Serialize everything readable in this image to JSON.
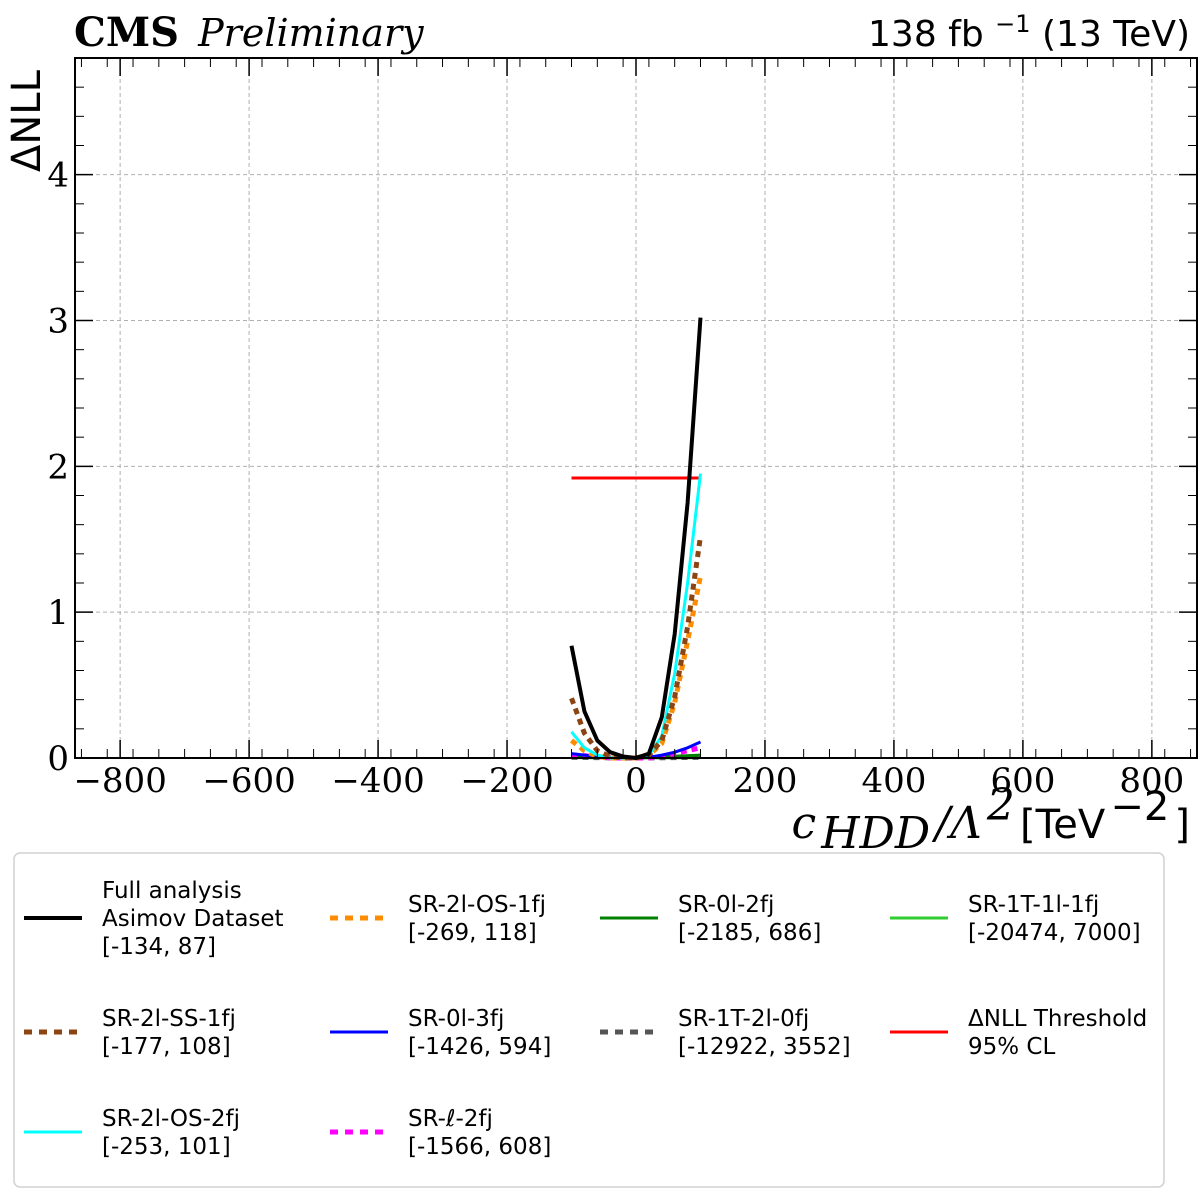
{
  "header": {
    "experiment": "CMS",
    "status": "Preliminary",
    "lumi_value": "138 fb",
    "lumi_exp": "−1",
    "energy": " (13 TeV)"
  },
  "axes": {
    "ylabel": "ΔNLL",
    "xlabel_symbol": "c",
    "xlabel_sub": "HDD",
    "xlabel_mid": "/Λ",
    "xlabel_pow": "2",
    "xlabel_unit": " [TeV",
    "xlabel_unit_pow": "−2",
    "xlabel_close": "]"
  },
  "chart_data": {
    "type": "line",
    "xlim": [
      -870,
      870
    ],
    "ylim": [
      0,
      4.8
    ],
    "grid": true,
    "legend_position": "below",
    "x_ticks": [
      {
        "value": -800,
        "label": "−800"
      },
      {
        "value": -600,
        "label": "−600"
      },
      {
        "value": -400,
        "label": "−400"
      },
      {
        "value": -200,
        "label": "−200"
      },
      {
        "value": 0,
        "label": "0"
      },
      {
        "value": 200,
        "label": "200"
      },
      {
        "value": 400,
        "label": "400"
      },
      {
        "value": 600,
        "label": "600"
      },
      {
        "value": 800,
        "label": "800"
      }
    ],
    "y_ticks": [
      {
        "value": 0,
        "label": "0"
      },
      {
        "value": 1,
        "label": "1"
      },
      {
        "value": 2,
        "label": "2"
      },
      {
        "value": 3,
        "label": "3"
      },
      {
        "value": 4,
        "label": "4"
      }
    ],
    "series": [
      {
        "name": "Full analysis",
        "name2": "Asimov Dataset",
        "interval": "[-134, 87]",
        "color": "#000000",
        "style": "solid",
        "width": 4,
        "x": [
          -100,
          -80,
          -60,
          -40,
          -20,
          0,
          20,
          40,
          60,
          80,
          100
        ],
        "y": [
          0.77,
          0.32,
          0.12,
          0.04,
          0.01,
          0.0,
          0.03,
          0.28,
          0.85,
          1.75,
          3.02
        ]
      },
      {
        "name": "SR-2l-SS-1fj",
        "interval": "[-177, 108]",
        "color": "#8B4513",
        "style": "dotted",
        "width": 5,
        "x": [
          -100,
          -80,
          -60,
          -40,
          -20,
          0,
          20,
          40,
          60,
          80,
          100
        ],
        "y": [
          0.41,
          0.17,
          0.05,
          0.01,
          0.0,
          0.0,
          0.02,
          0.12,
          0.42,
          0.9,
          1.52
        ]
      },
      {
        "name": "SR-2l-OS-2fj",
        "interval": "[-253, 101]",
        "color": "#00FFFF",
        "style": "solid",
        "width": 3,
        "x": [
          -100,
          -80,
          -60,
          -40,
          -20,
          0,
          20,
          40,
          60,
          80,
          100
        ],
        "y": [
          0.18,
          0.07,
          0.02,
          0.0,
          0.0,
          0.0,
          0.02,
          0.15,
          0.58,
          1.2,
          1.95
        ]
      },
      {
        "name": "SR-2l-OS-1fj",
        "interval": "[-269, 118]",
        "color": "#FF8C00",
        "style": "dotted",
        "width": 5,
        "x": [
          -100,
          -80,
          -60,
          -40,
          -20,
          0,
          20,
          40,
          60,
          80,
          100
        ],
        "y": [
          0.12,
          0.05,
          0.01,
          0.0,
          0.0,
          0.0,
          0.02,
          0.1,
          0.38,
          0.8,
          1.25
        ]
      },
      {
        "name": "SR-0l-3fj",
        "interval": "[-1426, 594]",
        "color": "#0000FF",
        "style": "solid",
        "width": 3,
        "x": [
          -100,
          -80,
          -60,
          -40,
          -20,
          0,
          20,
          40,
          60,
          80,
          100
        ],
        "y": [
          0.03,
          0.02,
          0.01,
          0.005,
          0.0,
          0.0,
          0.005,
          0.02,
          0.04,
          0.07,
          0.11
        ]
      },
      {
        "name": "SR-ℓ-2fj",
        "interval": "[-1566, 608]",
        "color": "#FF00FF",
        "style": "dotted",
        "width": 5,
        "x": [
          -100,
          -80,
          -60,
          -40,
          -20,
          0,
          20,
          40,
          60,
          80,
          100
        ],
        "y": [
          0.02,
          0.015,
          0.01,
          0.0,
          0.0,
          0.0,
          0.0,
          0.01,
          0.03,
          0.05,
          0.07
        ]
      },
      {
        "name": "SR-0l-2fj",
        "interval": "[-2185, 686]",
        "color": "#008000",
        "style": "solid",
        "width": 3,
        "x": [
          -100,
          -50,
          0,
          50,
          100
        ],
        "y": [
          0.01,
          0.005,
          0.0,
          0.01,
          0.02
        ]
      },
      {
        "name": "SR-1T-2l-0fj",
        "interval": "[-12922, 3552]",
        "color": "#555555",
        "style": "dotted",
        "width": 5,
        "x": [
          -100,
          -50,
          0,
          50,
          100
        ],
        "y": [
          0.005,
          0.002,
          0.0,
          0.002,
          0.005
        ]
      },
      {
        "name": "SR-1T-1l-1fj",
        "interval": "[-20474, 7000]",
        "color": "#32CD32",
        "style": "solid",
        "width": 3,
        "x": [
          -100,
          -50,
          0,
          50,
          100
        ],
        "y": [
          0.003,
          0.001,
          0.0,
          0.001,
          0.003
        ]
      },
      {
        "name": "ΔNLL Threshold",
        "name2": "95% CL",
        "interval": "",
        "color": "#FF0000",
        "style": "solid",
        "width": 3,
        "x": [
          -100,
          100
        ],
        "y": [
          1.92,
          1.92
        ]
      }
    ]
  }
}
